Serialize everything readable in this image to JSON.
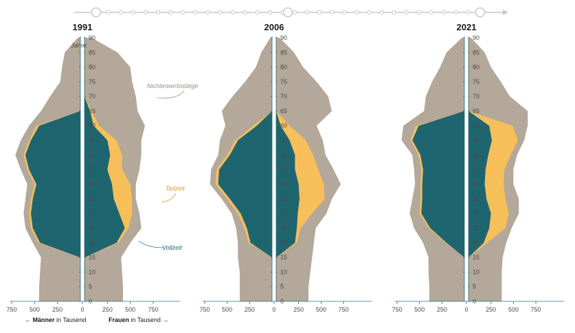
{
  "colors": {
    "nichterwerb": "#b3a899",
    "teilzeit": "#f7bf5a",
    "vollzeit": "#1f6570",
    "axis": "#2f6b75",
    "timeline": "#c9c9c9",
    "text": "#1a1a1a"
  },
  "timeline": {
    "years": [
      "1991",
      "2006",
      "2021"
    ]
  },
  "chart_data": [
    {
      "type": "area",
      "title": "1991",
      "age_unit": "Jahre",
      "x_ticks": [
        750,
        500,
        250,
        0,
        250,
        500,
        750
      ],
      "y_ticks": [
        0,
        5,
        10,
        15,
        20,
        25,
        30,
        35,
        40,
        45,
        50,
        55,
        60,
        65,
        70,
        75,
        80,
        85,
        90
      ],
      "x_range": [
        0,
        750
      ],
      "y_range": [
        0,
        90
      ],
      "ages": [
        0,
        5,
        10,
        15,
        20,
        25,
        30,
        35,
        40,
        45,
        50,
        55,
        60,
        65,
        70,
        75,
        80,
        85,
        90
      ],
      "men_total": [
        450,
        450,
        440,
        430,
        520,
        600,
        620,
        600,
        580,
        650,
        710,
        650,
        560,
        430,
        330,
        220,
        200,
        170,
        30
      ],
      "men_vollzeit": [
        0,
        0,
        0,
        0,
        440,
        520,
        540,
        520,
        480,
        560,
        600,
        540,
        450,
        0,
        0,
        0,
        0,
        0,
        0
      ],
      "men_teilzeit": [
        0,
        0,
        0,
        0,
        20,
        20,
        20,
        20,
        20,
        20,
        20,
        20,
        30,
        0,
        0,
        0,
        0,
        0,
        0
      ],
      "women_total": [
        420,
        420,
        410,
        400,
        500,
        620,
        600,
        560,
        560,
        600,
        620,
        620,
        660,
        580,
        560,
        520,
        500,
        360,
        80
      ],
      "women_vollzeit": [
        0,
        0,
        0,
        0,
        350,
        440,
        380,
        320,
        300,
        250,
        280,
        250,
        100,
        60,
        0,
        0,
        0,
        0,
        0
      ],
      "women_teilzeit": [
        0,
        0,
        0,
        0,
        20,
        40,
        140,
        200,
        200,
        160,
        130,
        100,
        60,
        20,
        0,
        0,
        0,
        0,
        0
      ],
      "annotations": [
        "Nichterwerbstätige",
        "Teilzeit",
        "Vollzeit"
      ]
    },
    {
      "type": "area",
      "title": "2006",
      "age_unit": "",
      "x_ticks": [
        750,
        500,
        250,
        0,
        250,
        500,
        750
      ],
      "y_ticks": [
        0,
        5,
        10,
        15,
        20,
        25,
        30,
        35,
        40,
        45,
        50,
        55,
        60,
        65,
        70,
        75,
        80,
        85,
        90
      ],
      "x_range": [
        0,
        750
      ],
      "y_range": [
        0,
        90
      ],
      "ages": [
        0,
        5,
        10,
        15,
        20,
        25,
        30,
        35,
        40,
        45,
        50,
        55,
        60,
        65,
        70,
        75,
        80,
        85,
        90
      ],
      "men_total": [
        360,
        360,
        360,
        380,
        380,
        400,
        450,
        560,
        690,
        680,
        600,
        580,
        520,
        560,
        440,
        300,
        180,
        120,
        20
      ],
      "men_vollzeit": [
        0,
        0,
        0,
        0,
        240,
        280,
        350,
        470,
        600,
        590,
        470,
        380,
        170,
        0,
        0,
        0,
        0,
        0,
        0
      ],
      "men_teilzeit": [
        0,
        0,
        0,
        0,
        20,
        30,
        30,
        30,
        30,
        30,
        30,
        30,
        40,
        0,
        0,
        0,
        0,
        0,
        0
      ],
      "women_total": [
        360,
        360,
        380,
        400,
        420,
        440,
        560,
        620,
        720,
        640,
        550,
        520,
        450,
        620,
        580,
        450,
        300,
        200,
        40
      ],
      "women_vollzeit": [
        0,
        0,
        0,
        0,
        210,
        230,
        240,
        260,
        250,
        210,
        210,
        150,
        50,
        0,
        0,
        0,
        0,
        0,
        0
      ],
      "women_teilzeit": [
        0,
        0,
        0,
        0,
        20,
        40,
        160,
        280,
        280,
        260,
        200,
        180,
        100,
        0,
        0,
        0,
        0,
        0,
        0
      ]
    },
    {
      "type": "area",
      "title": "2021",
      "age_unit": "",
      "x_ticks": [
        750,
        500,
        250,
        0,
        250,
        500,
        750
      ],
      "y_ticks": [
        0,
        5,
        10,
        15,
        20,
        25,
        30,
        35,
        40,
        45,
        50,
        55,
        60,
        65,
        70,
        75,
        80,
        85,
        90
      ],
      "x_range": [
        0,
        750
      ],
      "y_range": [
        0,
        90
      ],
      "ages": [
        0,
        5,
        10,
        15,
        20,
        25,
        30,
        35,
        40,
        45,
        50,
        55,
        60,
        65,
        70,
        75,
        80,
        85,
        90
      ],
      "men_total": [
        390,
        390,
        400,
        400,
        460,
        560,
        610,
        580,
        550,
        560,
        580,
        700,
        680,
        450,
        430,
        360,
        270,
        200,
        30
      ],
      "men_vollzeit": [
        0,
        0,
        0,
        0,
        200,
        380,
        480,
        470,
        470,
        460,
        490,
        580,
        510,
        0,
        0,
        0,
        0,
        0,
        0
      ],
      "men_teilzeit": [
        0,
        0,
        0,
        0,
        10,
        20,
        20,
        20,
        20,
        20,
        20,
        20,
        30,
        0,
        0,
        0,
        0,
        0,
        0
      ],
      "women_total": [
        370,
        370,
        370,
        380,
        420,
        480,
        560,
        560,
        500,
        500,
        540,
        620,
        660,
        660,
        460,
        360,
        250,
        180,
        30
      ],
      "women_vollzeit": [
        0,
        0,
        0,
        0,
        170,
        230,
        250,
        200,
        180,
        190,
        220,
        260,
        230,
        0,
        0,
        0,
        0,
        0,
        0
      ],
      "women_teilzeit": [
        0,
        0,
        0,
        0,
        40,
        180,
        200,
        210,
        210,
        210,
        250,
        290,
        260,
        0,
        0,
        0,
        0,
        0,
        0
      ]
    }
  ],
  "legend": {
    "men_label": "Männer",
    "women_label": "Frauen",
    "unit": "in Tausend",
    "left_arrow": "←",
    "right_arrow": "→"
  }
}
